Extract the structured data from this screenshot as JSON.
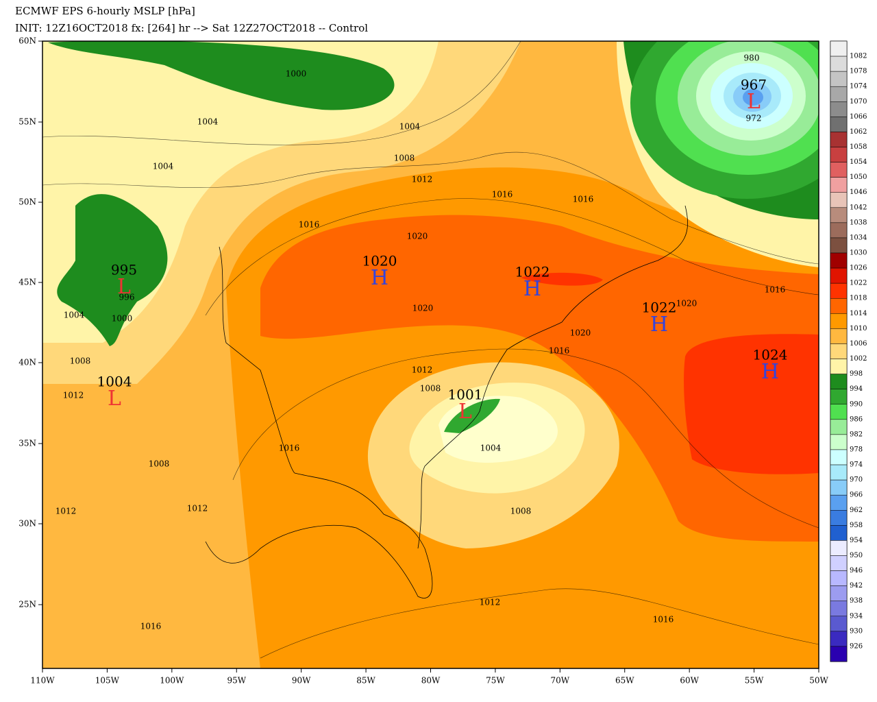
{
  "header": {
    "title": "ECMWF EPS 6-hourly MSLP [hPa]",
    "subtitle": "INIT: 12Z16OCT2018 fx: [264] hr --> Sat 12Z27OCT2018 -- Control"
  },
  "map": {
    "lat_labels": [
      "60N",
      "55N",
      "50N",
      "45N",
      "40N",
      "35N",
      "30N",
      "25N"
    ],
    "lon_labels": [
      "110W",
      "105W",
      "100W",
      "95W",
      "90W",
      "85W",
      "80W",
      "75W",
      "70W",
      "65W",
      "60W",
      "55W",
      "50W"
    ],
    "contour_labels": [
      "1000",
      "1004",
      "1004",
      "1004",
      "1008",
      "1012",
      "1016",
      "1016",
      "1016",
      "1020",
      "1020",
      "1020",
      "1020",
      "1016",
      "1016",
      "1012",
      "1008",
      "1004",
      "1008",
      "1012",
      "1016",
      "1016",
      "1012",
      "1008",
      "1012",
      "1016",
      "1004",
      "1000",
      "996",
      "1008",
      "1012",
      "980",
      "972"
    ],
    "centers": [
      {
        "letter": "L",
        "value": "995"
      },
      {
        "letter": "L",
        "value": "1004"
      },
      {
        "letter": "H",
        "value": "1020"
      },
      {
        "letter": "H",
        "value": "1022"
      },
      {
        "letter": "H",
        "value": "1022"
      },
      {
        "letter": "H",
        "value": "1024"
      },
      {
        "letter": "L",
        "value": "1001"
      },
      {
        "letter": "L",
        "value": "967"
      }
    ]
  },
  "colorbar": {
    "labels": [
      "1082",
      "1078",
      "1074",
      "1070",
      "1066",
      "1062",
      "1058",
      "1054",
      "1050",
      "1046",
      "1042",
      "1038",
      "1034",
      "1030",
      "1026",
      "1022",
      "1018",
      "1014",
      "1010",
      "1006",
      "1002",
      "998",
      "994",
      "990",
      "986",
      "982",
      "978",
      "974",
      "970",
      "966",
      "962",
      "958",
      "954",
      "950",
      "946",
      "942",
      "938",
      "934",
      "930",
      "926"
    ],
    "colors": [
      "#f0f0f0",
      "#dcdcdc",
      "#c4c4c4",
      "#a8a8a8",
      "#8c8c8c",
      "#707070",
      "#a83232",
      "#c84040",
      "#e06060",
      "#f0a0a0",
      "#e8c4b8",
      "#b88c7c",
      "#9c6c5c",
      "#7c5040",
      "#a00000",
      "#e01400",
      "#ff3300",
      "#ff6600",
      "#ff9900",
      "#ffb840",
      "#ffd87a",
      "#fff4a8",
      "#1e8c1e",
      "#30a830",
      "#50e050",
      "#98ec98",
      "#ccffcc",
      "#ccffff",
      "#a8eafa",
      "#88ccf8",
      "#5aa0f0",
      "#3a7ce0",
      "#2060d0",
      "#ececff",
      "#d0d0ff",
      "#b8b8ff",
      "#9c9cf0",
      "#7a7ae0",
      "#5a5ad0",
      "#3a2ac0",
      "#2a00b0"
    ]
  }
}
